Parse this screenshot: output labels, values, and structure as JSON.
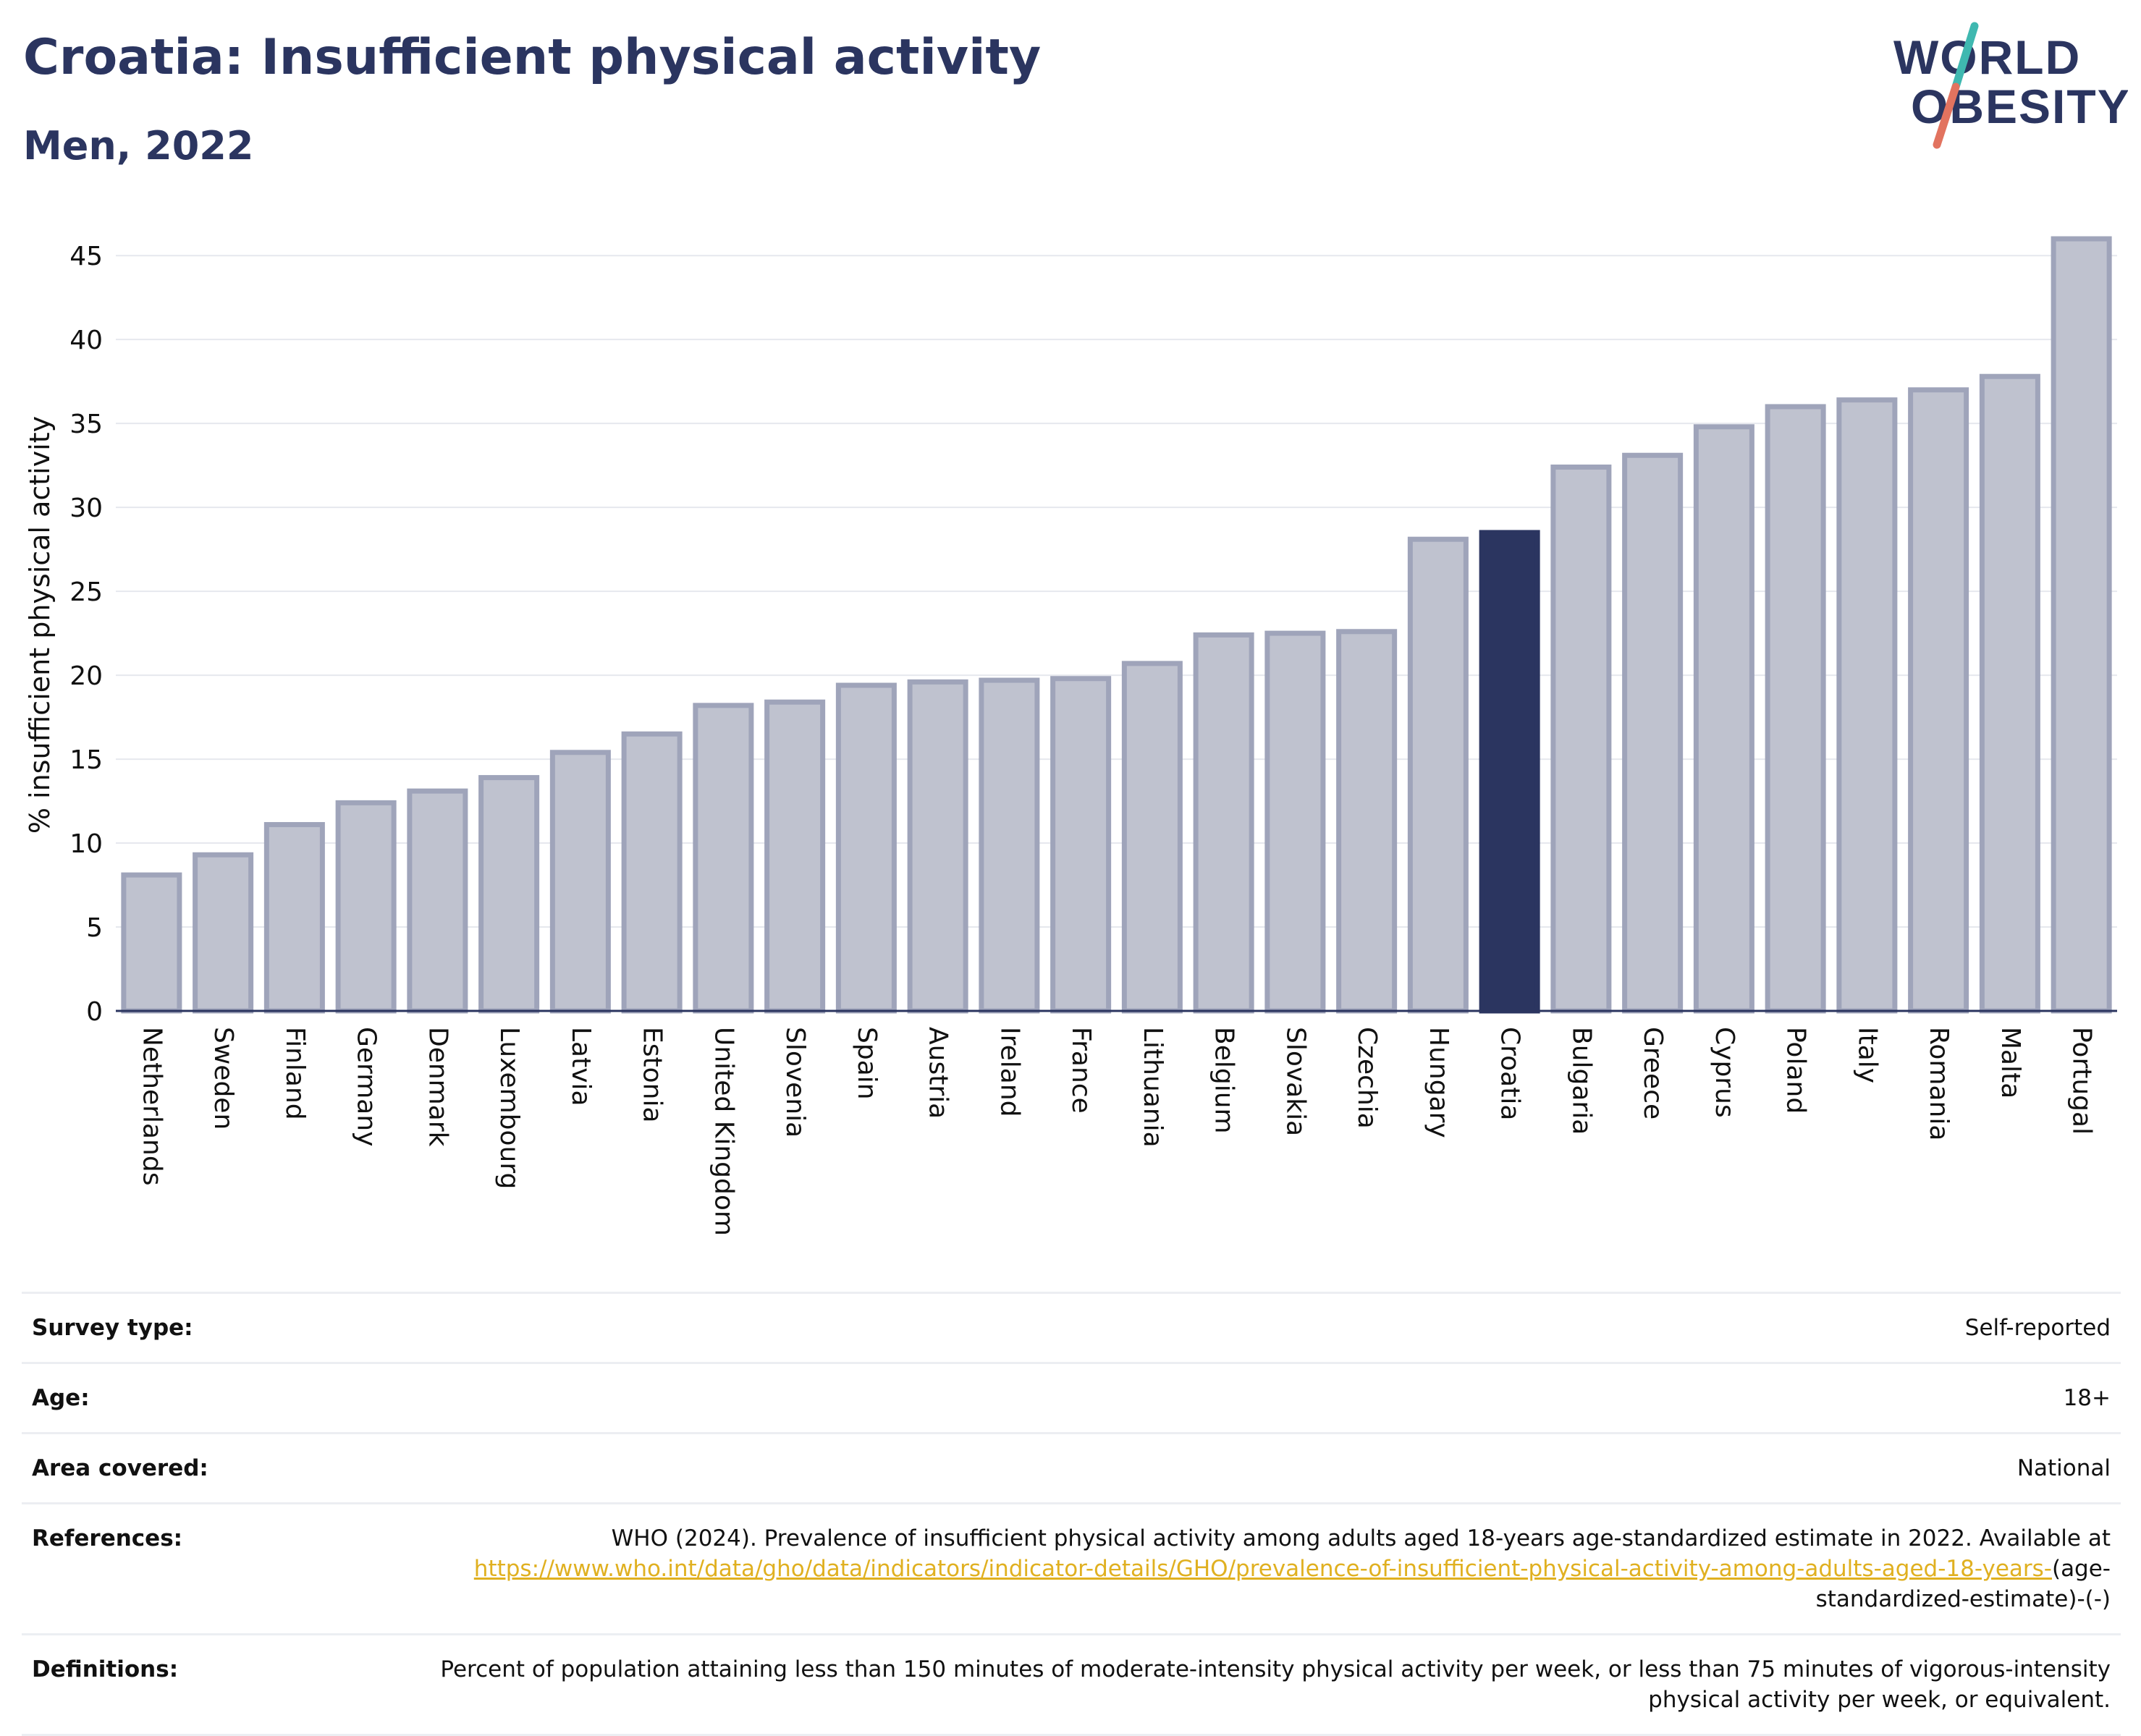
{
  "header": {
    "title": "Croatia: Insufficient physical activity",
    "subtitle": "Men, 2022"
  },
  "logo": {
    "line1": "WORLD",
    "line2": "OBESITY"
  },
  "colors": {
    "navy": "#2b3560",
    "bar": "#bfc2cf",
    "bar_border": "#9fa4ba",
    "highlight": "#2b3560",
    "link": "#e0b020",
    "logo_teal": "#3fb8b0",
    "logo_coral": "#e2735f"
  },
  "chart_data": {
    "type": "bar",
    "ylabel": "% insufficient physical activity",
    "ylim": [
      0,
      46
    ],
    "yticks": [
      0,
      5,
      10,
      15,
      20,
      25,
      30,
      35,
      40,
      45
    ],
    "highlight": "Croatia",
    "categories": [
      "Netherlands",
      "Sweden",
      "Finland",
      "Germany",
      "Denmark",
      "Luxembourg",
      "Latvia",
      "Estonia",
      "United Kingdom",
      "Slovenia",
      "Spain",
      "Austria",
      "Ireland",
      "France",
      "Lithuania",
      "Belgium",
      "Slovakia",
      "Czechia",
      "Hungary",
      "Croatia",
      "Bulgaria",
      "Greece",
      "Cyprus",
      "Poland",
      "Italy",
      "Romania",
      "Malta",
      "Portugal"
    ],
    "values": [
      8.1,
      9.3,
      11.1,
      12.4,
      13.1,
      13.9,
      15.4,
      16.5,
      18.2,
      18.4,
      19.4,
      19.6,
      19.7,
      19.8,
      20.7,
      22.4,
      22.5,
      22.6,
      28.1,
      28.5,
      32.4,
      33.1,
      34.8,
      36.0,
      36.4,
      37.0,
      37.8,
      46.0
    ]
  },
  "info": {
    "survey_type": {
      "label": "Survey type:",
      "value": "Self-reported"
    },
    "age": {
      "label": "Age:",
      "value": "18+"
    },
    "area": {
      "label": "Area covered:",
      "value": "National"
    },
    "references": {
      "label": "References:",
      "text": "WHO (2024). Prevalence of insufficient physical activity among adults aged 18-years age-standardized estimate in 2022. Available at",
      "link": "https://www.who.int/data/gho/data/indicators/indicator-details/GHO/prevalence-of-insufficient-physical-activity-among-adults-aged-18-years-",
      "suffix": "(age-standardized-estimate)-(-)"
    },
    "definitions": {
      "label": "Definitions:",
      "value": "Percent of population attaining less than 150 minutes of moderate-intensity physical activity per week, or less than 75 minutes of vigorous-intensity physical activity per week, or equivalent."
    }
  }
}
